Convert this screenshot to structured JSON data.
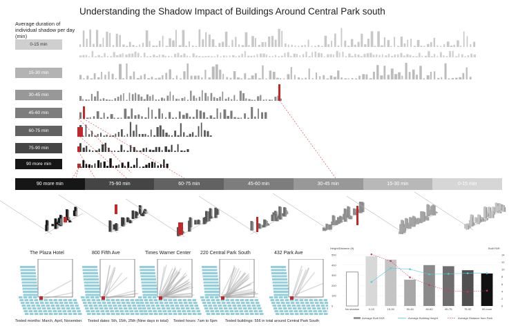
{
  "title": "Understanding the Shadow Impact of Buildings Around Central Park south",
  "legend_title": "Average duration of individual shadow per day (min)",
  "categories": [
    {
      "label": "0-15 min",
      "bg": "#cfcfcf",
      "fg": "#ffffff"
    },
    {
      "label": "15-30 min",
      "bg": "#b3b3b3",
      "fg": "#ffffff"
    },
    {
      "label": "30-45 min",
      "bg": "#989898",
      "fg": "#ffffff"
    },
    {
      "label": "45-60 min",
      "bg": "#7d7d7d",
      "fg": "#ffffff"
    },
    {
      "label": "60-75 min",
      "bg": "#626262",
      "fg": "#ffffff"
    },
    {
      "label": "75-90 min",
      "bg": "#454545",
      "fg": "#ffffff"
    },
    {
      "label": "90 more min",
      "bg": "#161616",
      "fg": "#ffffff"
    }
  ],
  "band_labels": [
    "90 more min",
    "75-90 min",
    "60-75 min",
    "45-60 min",
    "30-45 min",
    "15-30 min",
    "0-15 min"
  ],
  "sites": [
    "The Plaza Hotel",
    "800 Fifth Ave",
    "Times Warner Center",
    "220 Central Park South",
    "432 Park Ave"
  ],
  "footer": {
    "months": "Tested months: March, April, November.",
    "dates": "Tested dates: 5th, 15th, 25th (Nine days in total)",
    "hours": "Tested hours: 7am to 6pm",
    "buildings": "Tested buildings: 556 in total around Central Park South"
  },
  "colors": {
    "highlight": "#c0282b",
    "water": "#7fc7d6",
    "cyan": "#4fd0dc",
    "magenta": "#c8347a"
  },
  "chart_data": {
    "type": "bar",
    "categories": [
      "No shadow",
      "0-15",
      "15-30",
      "30-45",
      "45-60",
      "60-75",
      "75-90",
      "90 more"
    ],
    "left_axis_label": "Height/Distance (ft)",
    "right_axis_label": "Built FAR",
    "left_ylim": [
      0,
      500
    ],
    "left_ticks": [
      "0",
      "100",
      "200",
      "300",
      "400",
      "500"
    ],
    "right_ylim": [
      0,
      14
    ],
    "right_ticks": [
      "0",
      "2",
      "4",
      "6",
      "8",
      "10",
      "12",
      "14"
    ],
    "series": [
      {
        "name": "Average Built FAR",
        "kind": "bar",
        "axis": "right",
        "values": [
          9.3,
          13.6,
          12.7,
          7.2,
          11.2,
          10.9,
          9.8,
          8.9
        ]
      },
      {
        "name": "Average Building Height",
        "kind": "line",
        "axis": "left",
        "values": [
          null,
          235,
          370,
          360,
          310,
          315,
          320,
          320
        ]
      },
      {
        "name": "Average Distance from Park",
        "kind": "line",
        "axis": "left",
        "values": [
          null,
          505,
          440,
          280,
          205,
          150,
          140,
          150
        ]
      }
    ]
  }
}
